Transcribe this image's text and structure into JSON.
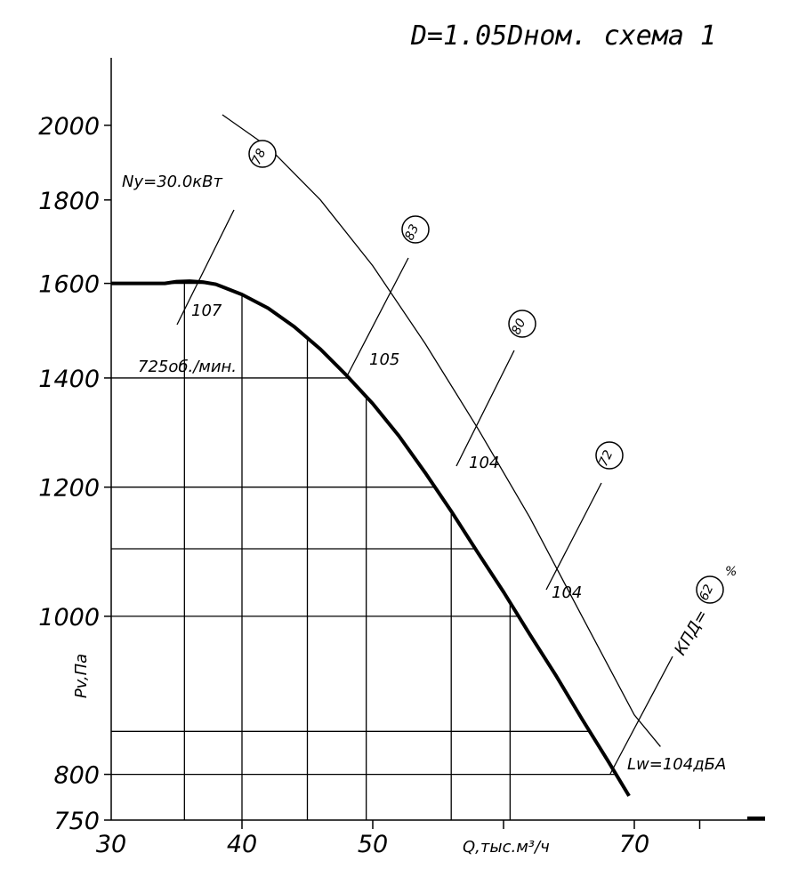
{
  "title": "D=1.05Dном. схема 1",
  "chart_data": {
    "type": "line",
    "title": "D=1.05Dном. схема 1",
    "xlabel": "Q,тыс.м³/ч",
    "ylabel": "Pv,Па",
    "xlim": [
      30,
      80
    ],
    "ylim": [
      750,
      2200
    ],
    "y_scale": "log",
    "x_tick_labels": [
      "30",
      "40",
      "50",
      "70"
    ],
    "y_tick_labels": [
      "750",
      "800",
      "1000",
      "1200",
      "1400",
      "1600",
      "1800",
      "2000"
    ],
    "grid": {
      "vertical": [
        35.6,
        40,
        45,
        49.5,
        56,
        60.5
      ],
      "horizontal": [
        850,
        1100
      ]
    },
    "series": [
      {
        "role": "pressure-curve",
        "x": [
          34.1,
          35,
          36,
          37,
          38,
          40,
          42,
          44,
          46,
          48,
          50,
          52,
          54,
          56,
          58,
          60,
          62,
          64,
          66,
          68,
          69.6
        ],
        "y": [
          1600,
          1604,
          1605,
          1603,
          1598,
          1575,
          1545,
          1505,
          1458,
          1405,
          1350,
          1290,
          1225,
          1160,
          1095,
          1035,
          975,
          920,
          865,
          815,
          776
        ]
      },
      {
        "role": "power-boundary",
        "x": [
          38.5,
          42,
          46,
          50,
          54,
          58,
          62,
          66,
          70,
          72
        ],
        "y": [
          2030,
          1940,
          1800,
          1640,
          1470,
          1305,
          1150,
          1000,
          870,
          832
        ]
      }
    ],
    "annotations": {
      "rpm_label": "725об./мин.",
      "power_label": "Ny=30.0кВт",
      "noise_label": "Lw=104дБА",
      "efficiency_label": "КПД=",
      "efficiency_unit": "%",
      "noise_values": [
        "107",
        "105",
        "104",
        "104"
      ],
      "efficiency_values": [
        "78",
        "83",
        "80",
        "72",
        "62"
      ]
    }
  }
}
